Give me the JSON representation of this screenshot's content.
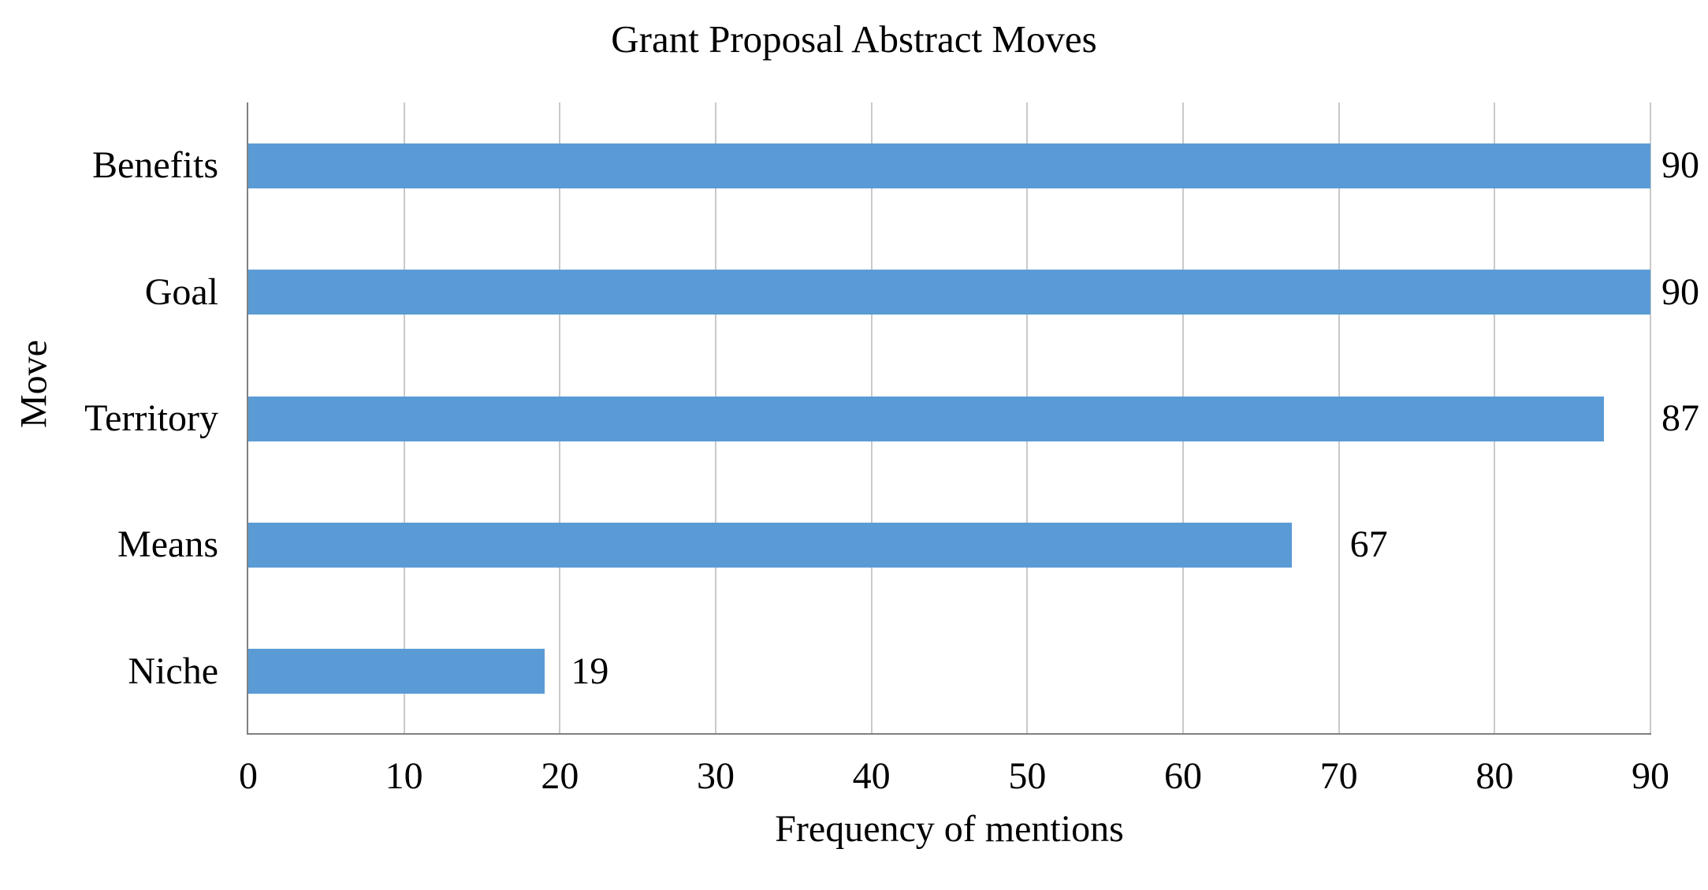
{
  "chart_data": {
    "type": "bar",
    "orientation": "horizontal",
    "title": "Grant Proposal Abstract Moves",
    "xlabel": "Frequency of mentions",
    "ylabel": "Move",
    "categories": [
      "Benefits",
      "Goal",
      "Territory",
      "Means",
      "Niche"
    ],
    "values": [
      90,
      90,
      87,
      67,
      19
    ],
    "data_labels": [
      "90",
      "90",
      "87",
      "67",
      "19"
    ],
    "x_ticks": [
      0,
      10,
      20,
      30,
      40,
      50,
      60,
      70,
      80,
      90
    ],
    "xlim": [
      0,
      90
    ],
    "grid": "vertical-gridlines-on",
    "legend": "none",
    "colors": {
      "bar": "#5B9BD5",
      "gridline": "#C9C9C9",
      "axis_line": "#808080",
      "text": "#000000",
      "background": "#FFFFFF"
    }
  }
}
